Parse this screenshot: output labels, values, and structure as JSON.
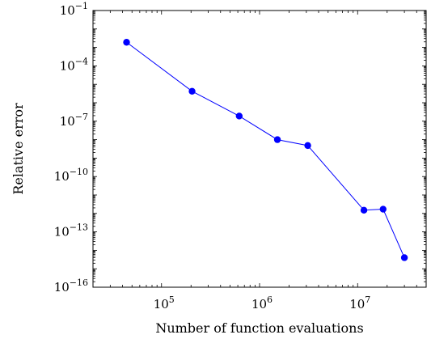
{
  "chart_data": {
    "type": "line",
    "xscale": "log",
    "yscale": "log",
    "xlabel": "Number of function evaluations",
    "ylabel": "Relative error",
    "xlim": [
      20000,
      50000000
    ],
    "ylim": [
      1e-16,
      0.1
    ],
    "x_ticks": [
      {
        "value": 100000,
        "base": "10",
        "exp": "5"
      },
      {
        "value": 1000000,
        "base": "10",
        "exp": "6"
      },
      {
        "value": 10000000,
        "base": "10",
        "exp": "7"
      }
    ],
    "y_ticks": [
      {
        "value": 0.1,
        "base": "10",
        "exp": "−1"
      },
      {
        "value": 0.0001,
        "base": "10",
        "exp": "−4"
      },
      {
        "value": 1e-07,
        "base": "10",
        "exp": "−7"
      },
      {
        "value": 1e-10,
        "base": "10",
        "exp": "−10"
      },
      {
        "value": 1e-13,
        "base": "10",
        "exp": "−13"
      },
      {
        "value": 1e-16,
        "base": "10",
        "exp": "−16"
      }
    ],
    "grid": false,
    "series": [
      {
        "color": "#0000ff",
        "marker": "circle",
        "x": [
          44000,
          205000,
          620000,
          1520000,
          3100000,
          11600000,
          18200000,
          30000000
        ],
        "y": [
          0.0019,
          4.2e-06,
          1.9e-07,
          1e-08,
          4.8e-09,
          1.5e-12,
          1.7e-12,
          4e-15
        ]
      }
    ]
  }
}
